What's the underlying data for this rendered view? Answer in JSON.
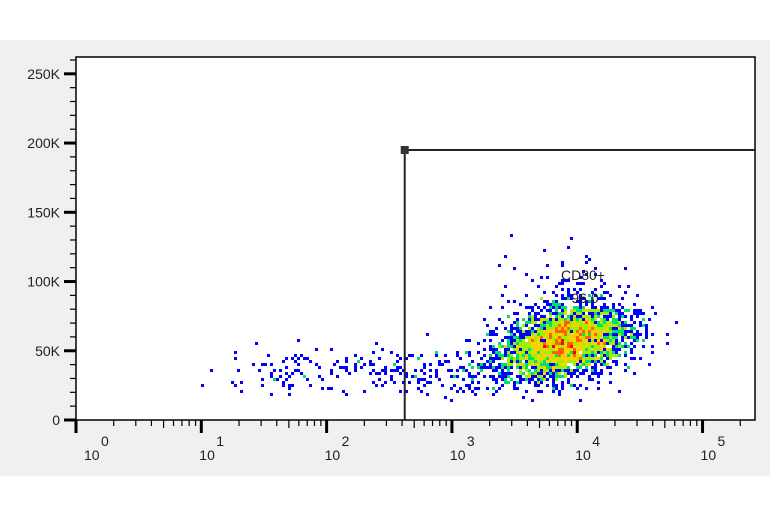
{
  "chart_data": {
    "type": "heatmap",
    "title": "",
    "xlabel": "",
    "ylabel": "",
    "x_scale": "log",
    "xlim": [
      1,
      262144
    ],
    "ylim": [
      0,
      262144
    ],
    "x_ticks": [
      {
        "base": "10",
        "exp": "0",
        "value": 1
      },
      {
        "base": "10",
        "exp": "1",
        "value": 10
      },
      {
        "base": "10",
        "exp": "2",
        "value": 100
      },
      {
        "base": "10",
        "exp": "3",
        "value": 1000
      },
      {
        "base": "10",
        "exp": "4",
        "value": 10000
      },
      {
        "base": "10",
        "exp": "5",
        "value": 100000
      }
    ],
    "y_ticks": [
      {
        "label": "0",
        "value": 0
      },
      {
        "label": "50K",
        "value": 50000
      },
      {
        "label": "100K",
        "value": 100000
      },
      {
        "label": "150K",
        "value": 150000
      },
      {
        "label": "200K",
        "value": 200000
      },
      {
        "label": "250K",
        "value": 250000
      }
    ],
    "populations": [
      {
        "x_center": 8000,
        "y_center": 55000,
        "x_log_sd": 0.25,
        "y_sd": 12000,
        "events": 3000
      },
      {
        "x_range": [
          10,
          3000
        ],
        "y_center": 35000,
        "y_sd": 9000,
        "events": 260
      },
      {
        "x_center": 1,
        "y_range": [
          20000,
          50000
        ],
        "events": 40
      }
    ],
    "gate": {
      "name": "CD80+",
      "percent": "96.0",
      "x_min": 420,
      "x_max": 262144,
      "y_min": 0,
      "y_max": 195000
    },
    "colors": [
      "#0000ff",
      "#00c8ff",
      "#00e070",
      "#a0f000",
      "#ffd000",
      "#ff6000",
      "#ff0000"
    ]
  }
}
